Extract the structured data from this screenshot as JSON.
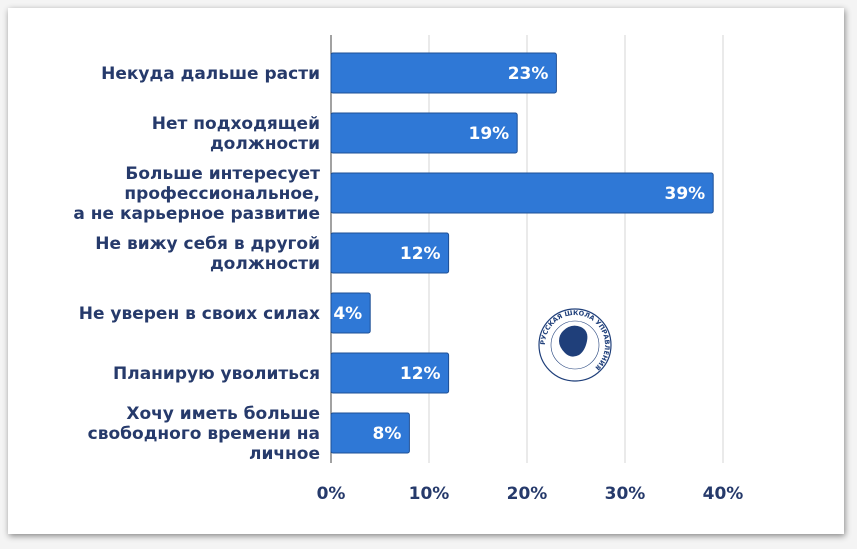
{
  "chart_data": {
    "type": "bar",
    "orientation": "horizontal",
    "categories": [
      [
        "Некуда дальше расти"
      ],
      [
        "Нет подходящей",
        "должности"
      ],
      [
        "Больше интересует",
        "профессиональное,",
        "а не карьерное развитие"
      ],
      [
        "Не вижу себя в другой",
        "должности"
      ],
      [
        "Не уверен в своих силах"
      ],
      [
        "Планирую уволиться"
      ],
      [
        "Хочу иметь больше",
        "свободного времени на",
        "личное"
      ]
    ],
    "values": [
      23,
      19,
      39,
      12,
      4,
      12,
      8
    ],
    "data_labels": [
      "23%",
      "19%",
      "39%",
      "12%",
      "4%",
      "12%",
      "8%"
    ],
    "xlim": [
      0,
      40
    ],
    "x_ticks": [
      "0%",
      "10%",
      "20%",
      "30%",
      "40%"
    ],
    "grid": true,
    "bar_color": "#2f78d6",
    "text_color": "#263a6b",
    "title": "",
    "xlabel": "",
    "ylabel": ""
  },
  "logo": {
    "text": "РУССКАЯ ШКОЛА УПРАВЛЕНИЯ",
    "icon": "lion-head-icon"
  }
}
